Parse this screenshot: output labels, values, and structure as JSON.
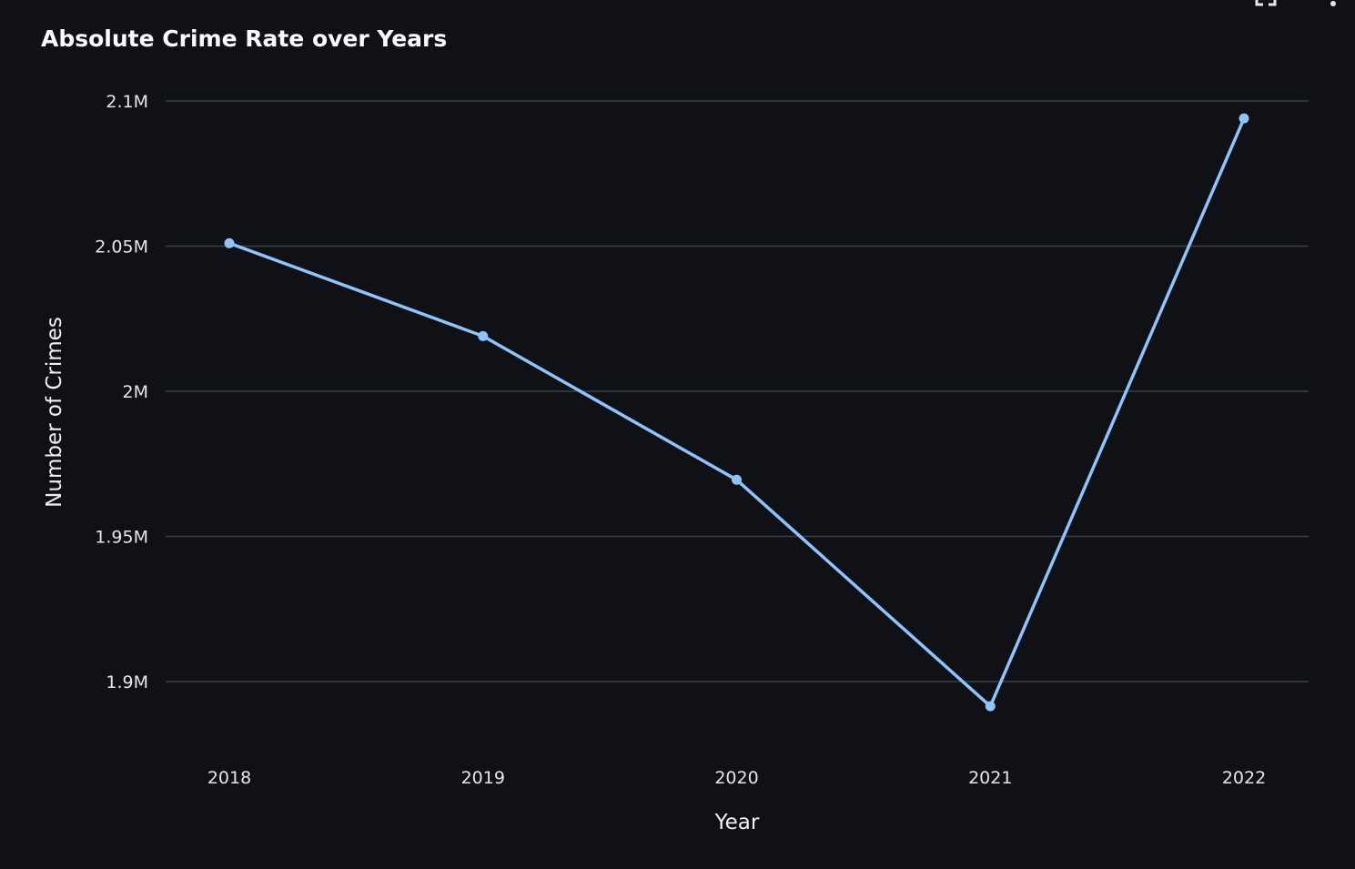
{
  "chart_data": {
    "type": "line",
    "title": "Absolute Crime Rate over Years",
    "xlabel": "Year",
    "ylabel": "Number of Crimes",
    "x": [
      2018,
      2019,
      2020,
      2021,
      2022
    ],
    "series": [
      {
        "values": [
          2051000,
          2019000,
          1969500,
          1891500,
          2094000
        ]
      }
    ],
    "ylim": [
      1900000,
      2100000
    ],
    "yticks": [
      2100000,
      2050000,
      2000000,
      1950000,
      1900000
    ],
    "ytick_labels": [
      "2.1M",
      "2.05M",
      "2M",
      "1.95M",
      "1.9M"
    ],
    "xtick_labels": [
      "2018",
      "2019",
      "2020",
      "2021",
      "2022"
    ],
    "grid": true,
    "line_color": "#8fc3fa",
    "grid_color": "#3a3d45",
    "background": "#0f1117"
  },
  "toolbar": {
    "icons": [
      "fullscreen-icon",
      "more-options-icon"
    ]
  }
}
